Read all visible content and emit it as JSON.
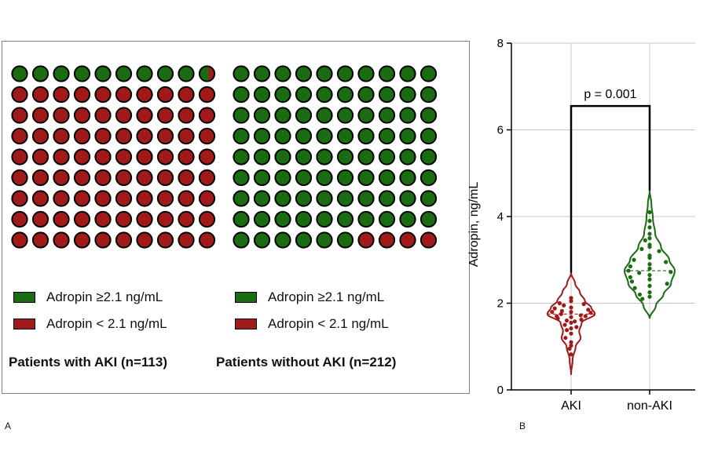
{
  "colors": {
    "green": "#1a6b12",
    "red": "#a01a1a",
    "stroke": "#000000"
  },
  "panel_a": {
    "label": "A",
    "groups": [
      {
        "caption": "Patients with AKI (n=113)",
        "rows": [
          "GGGGGGGGGM",
          "RRRRRRRRRR",
          "RRRRRRRRRR",
          "RRRRRRRRRR",
          "RRRRRRRRRR",
          "RRRRRRRRRR",
          "RRRRRRRRRR",
          "RRRRRRRRRR",
          "RRRRRRRRRR"
        ],
        "legend": [
          {
            "color": "green",
            "label": "Adropin ≥2.1 ng/mL"
          },
          {
            "color": "red",
            "label": "Adropin < 2.1 ng/mL"
          }
        ]
      },
      {
        "caption": "Patients without AKI (n=212)",
        "rows": [
          "GGGGGGGGGG",
          "GGGGGGGGGG",
          "GGGGGGGGGG",
          "GGGGGGGGGG",
          "GGGGGGGGGG",
          "GGGGGGGGGG",
          "GGGGGGGGGG",
          "GGGGGGGGGG",
          "GGGGGGRRRR"
        ],
        "legend": [
          {
            "color": "green",
            "label": "Adropin ≥2.1 ng/mL"
          },
          {
            "color": "red",
            "label": "Adropin < 2.1 ng/mL"
          }
        ]
      }
    ]
  },
  "chart_data": {
    "type": "violin",
    "panel_label": "B",
    "ylabel": "Adropin, ng/mL",
    "xlabel": "",
    "ylim": [
      0,
      8
    ],
    "yticks": [
      0,
      2,
      4,
      6,
      8
    ],
    "grid": true,
    "categories": [
      "AKI",
      "non-AKI"
    ],
    "annotation": "p = 0.001",
    "series": [
      {
        "name": "AKI",
        "color": "red",
        "median": 1.75,
        "min": 0.35,
        "max": 2.7,
        "points": [
          2.12,
          2.05,
          2.0,
          1.98,
          1.95,
          1.9,
          1.88,
          1.85,
          1.82,
          1.8,
          1.8,
          1.78,
          1.75,
          1.72,
          1.7,
          1.7,
          1.68,
          1.65,
          1.62,
          1.6,
          1.58,
          1.55,
          1.5,
          1.45,
          1.42,
          1.38,
          1.3,
          1.2,
          1.1,
          1.02,
          0.95,
          0.82
        ],
        "density": [
          [
            0.35,
            0.0
          ],
          [
            0.7,
            0.06
          ],
          [
            1.0,
            0.18
          ],
          [
            1.2,
            0.38
          ],
          [
            1.35,
            0.32
          ],
          [
            1.55,
            0.42
          ],
          [
            1.75,
            0.95
          ],
          [
            1.9,
            0.8
          ],
          [
            2.05,
            0.55
          ],
          [
            2.25,
            0.35
          ],
          [
            2.45,
            0.16
          ],
          [
            2.7,
            0.0
          ]
        ]
      },
      {
        "name": "non-AKI",
        "color": "green",
        "median": 2.75,
        "min": 1.65,
        "max": 4.6,
        "points": [
          4.1,
          3.9,
          3.75,
          3.6,
          3.5,
          3.45,
          3.35,
          3.3,
          3.25,
          3.2,
          3.1,
          3.05,
          3.0,
          2.95,
          2.9,
          2.85,
          2.8,
          2.75,
          2.72,
          2.7,
          2.65,
          2.6,
          2.55,
          2.5,
          2.45,
          2.4,
          2.35,
          2.25,
          2.2,
          2.15,
          2.1
        ],
        "density": [
          [
            1.65,
            0.0
          ],
          [
            1.95,
            0.25
          ],
          [
            2.2,
            0.55
          ],
          [
            2.45,
            0.85
          ],
          [
            2.75,
            1.0
          ],
          [
            3.0,
            0.78
          ],
          [
            3.3,
            0.45
          ],
          [
            3.6,
            0.22
          ],
          [
            3.95,
            0.13
          ],
          [
            4.3,
            0.07
          ],
          [
            4.6,
            0.0
          ]
        ]
      }
    ]
  }
}
